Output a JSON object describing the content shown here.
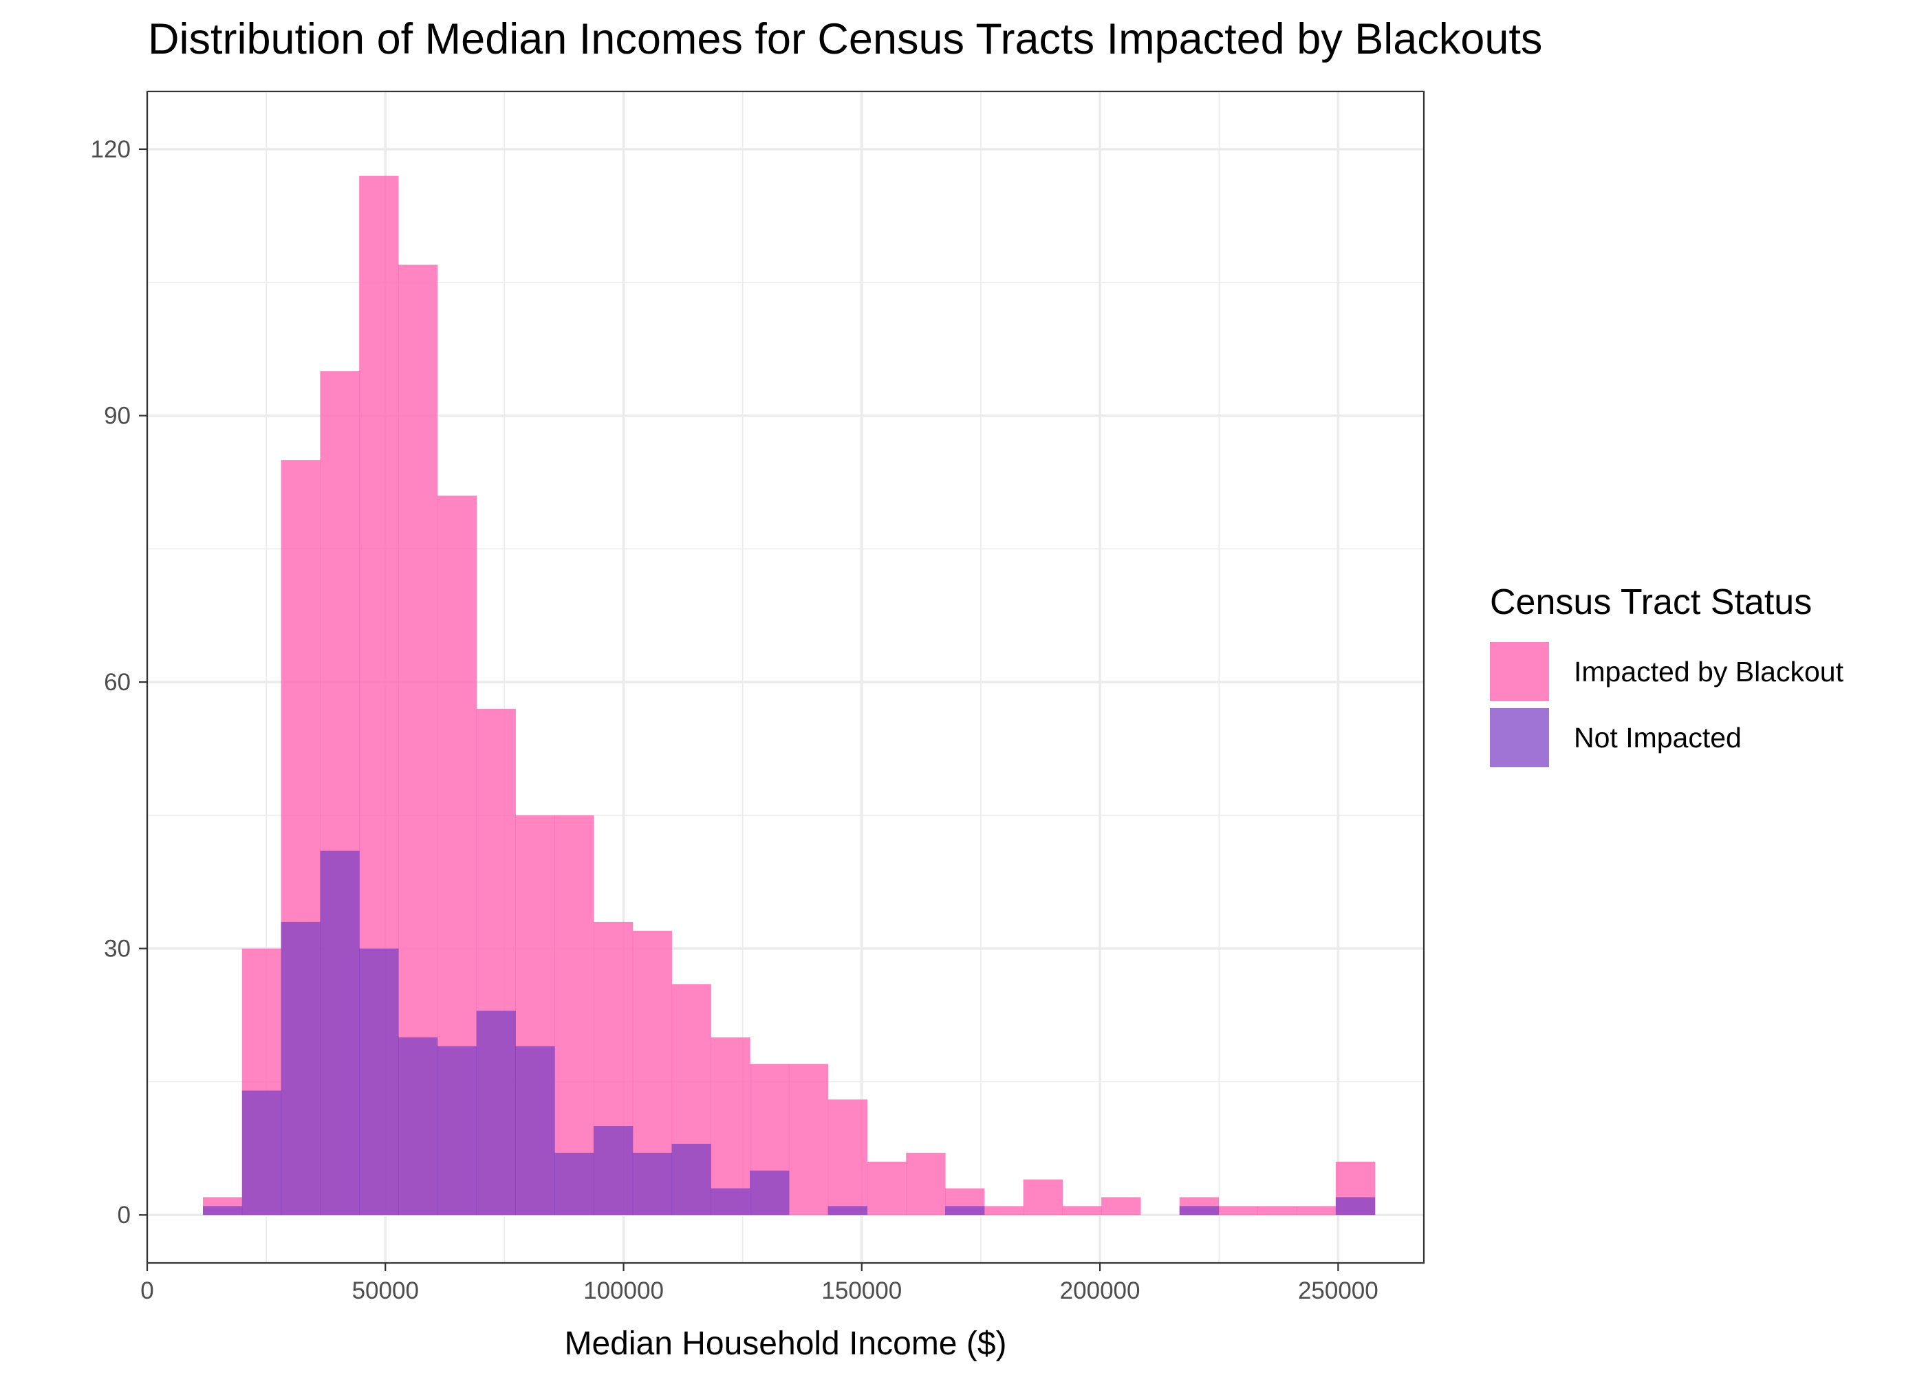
{
  "chart_data": {
    "type": "bar",
    "subtype": "overlapping-histogram",
    "title": "Distribution of Median Incomes for Census Tracts Impacted by Blackouts",
    "xlabel": "Median Household Income ($)",
    "ylabel": "",
    "xlim": [
      0,
      268000
    ],
    "ylim": [
      -5.4,
      126.5
    ],
    "x_ticks": [
      0,
      50000,
      100000,
      150000,
      200000,
      250000
    ],
    "x_tick_labels": [
      "0",
      "50000",
      "100000",
      "150000",
      "200000",
      "250000"
    ],
    "y_ticks": [
      0,
      30,
      60,
      90,
      120
    ],
    "y_tick_labels": [
      "0",
      "30",
      "60",
      "90",
      "120"
    ],
    "bin_width": 8200,
    "bin_start": 11700,
    "grid": true,
    "legend": {
      "title": "Census Tract Status",
      "placement": "right"
    },
    "series": [
      {
        "name": "Impacted by Blackout",
        "color": "#FF69B4",
        "opacity": 0.82,
        "values": [
          2,
          30,
          85,
          95,
          117,
          107,
          81,
          57,
          45,
          45,
          33,
          32,
          26,
          20,
          17,
          17,
          13,
          6,
          7,
          3,
          1,
          4,
          1,
          2,
          0,
          2,
          1,
          1,
          1,
          6
        ]
      },
      {
        "name": "Not Impacted",
        "color": "#7B3FC4",
        "opacity": 0.72,
        "values": [
          1,
          14,
          33,
          41,
          30,
          20,
          19,
          23,
          19,
          7,
          10,
          7,
          8,
          3,
          5,
          0,
          1,
          0,
          0,
          1,
          0,
          0,
          0,
          0,
          0,
          1,
          0,
          0,
          0,
          2
        ]
      }
    ]
  }
}
